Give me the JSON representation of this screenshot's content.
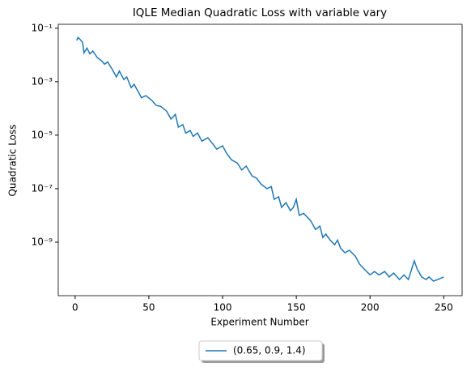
{
  "chart_data": {
    "type": "line",
    "title": "IQLE Median Quadratic Loss with variable vary",
    "xlabel": "Experiment Number",
    "ylabel": "Quadratic Loss",
    "yscale": "log",
    "legend": "lower center outside",
    "xlim": [
      -11.45,
      262.45
    ],
    "xticks": [
      0,
      50,
      100,
      150,
      200,
      250
    ],
    "ylim": [
      1e-11,
      0.14
    ],
    "yticks": [
      {
        "value": 0.1,
        "label": "10⁻¹"
      },
      {
        "value": 0.001,
        "label": "10⁻³"
      },
      {
        "value": 1e-05,
        "label": "10⁻⁵"
      },
      {
        "value": 1e-07,
        "label": "10⁻⁷"
      },
      {
        "value": 1e-09,
        "label": "10⁻⁹"
      }
    ],
    "series": [
      {
        "name": "(0.65, 0.9, 1.4)",
        "color": "#1f77b4",
        "x": [
          1,
          2,
          3,
          5,
          6,
          8,
          10,
          12,
          15,
          18,
          20,
          22,
          25,
          28,
          30,
          33,
          35,
          38,
          40,
          43,
          45,
          48,
          52,
          55,
          58,
          62,
          65,
          68,
          70,
          73,
          75,
          78,
          80,
          83,
          86,
          90,
          93,
          96,
          100,
          103,
          106,
          110,
          113,
          116,
          120,
          123,
          126,
          130,
          133,
          135,
          138,
          140,
          143,
          146,
          148,
          150,
          152,
          155,
          158,
          160,
          163,
          166,
          168,
          170,
          173,
          176,
          178,
          180,
          183,
          186,
          190,
          193,
          196,
          200,
          203,
          206,
          210,
          213,
          216,
          220,
          223,
          226,
          230,
          232,
          235,
          238,
          240,
          243,
          246,
          248,
          250
        ],
        "values": [
          0.035,
          0.045,
          0.04,
          0.03,
          0.012,
          0.018,
          0.011,
          0.014,
          0.008,
          0.006,
          0.0045,
          0.0055,
          0.003,
          0.0015,
          0.0025,
          0.0012,
          0.0015,
          0.0006,
          0.0008,
          0.0004,
          0.00025,
          0.0003,
          0.0002,
          0.00013,
          0.00012,
          8e-05,
          4e-05,
          6e-05,
          2e-05,
          2.5e-05,
          1.2e-05,
          1.5e-05,
          9e-06,
          1.2e-05,
          6e-06,
          8e-06,
          5e-06,
          3e-06,
          4e-06,
          2e-06,
          1.2e-06,
          9e-07,
          5e-07,
          7e-07,
          3e-07,
          2.5e-07,
          1.5e-07,
          1e-07,
          1.2e-07,
          4e-08,
          5e-08,
          2e-08,
          3e-08,
          1.5e-08,
          2e-08,
          4e-08,
          1e-08,
          1.2e-08,
          8e-09,
          6e-09,
          3e-09,
          4e-09,
          1.5e-09,
          2e-09,
          1.2e-09,
          8e-10,
          1.2e-09,
          6e-10,
          4e-10,
          5e-10,
          3e-10,
          1.5e-10,
          1e-10,
          6e-11,
          8e-11,
          6e-11,
          8e-11,
          5e-11,
          7e-11,
          4e-11,
          6e-11,
          4e-11,
          2e-10,
          1e-10,
          5e-11,
          4e-11,
          5e-11,
          3.5e-11,
          4e-11,
          4.5e-11,
          5e-11
        ]
      }
    ]
  }
}
